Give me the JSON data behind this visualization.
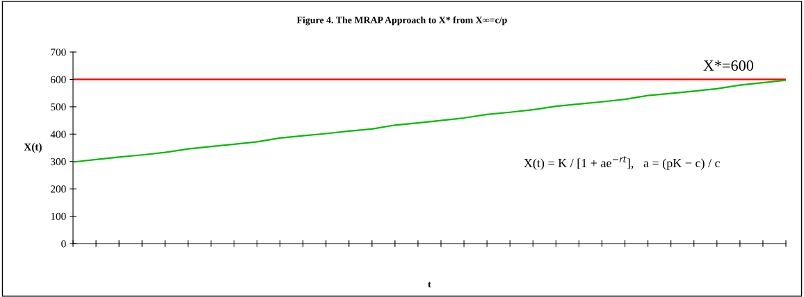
{
  "chart_data": {
    "type": "line",
    "title": "Figure 4. The MRAP Approach to X* from X∞=c/p",
    "xlabel": "t",
    "ylabel": "X(t)",
    "categories": [
      null,
      null,
      null,
      null,
      null,
      null,
      null,
      null,
      null,
      null,
      null,
      null,
      null,
      null,
      null,
      null,
      null,
      null,
      null,
      null,
      null,
      null,
      null,
      null,
      null,
      null,
      null,
      null,
      null,
      null,
      null,
      null
    ],
    "series": [
      {
        "color": "#00bb00",
        "values": [
          298,
          307,
          316,
          324,
          333,
          346,
          355,
          363,
          372,
          386,
          394,
          402,
          411,
          419,
          433,
          441,
          450,
          459,
          472,
          480,
          489,
          502,
          510,
          518,
          527,
          541,
          549,
          557,
          566,
          579,
          588,
          597
        ]
      }
    ],
    "ref_lines": [
      {
        "axis": "y",
        "value": 600,
        "label": "X*=600",
        "color": "#ff0000",
        "line_style": "solid"
      }
    ],
    "annotations": [
      "X(t) = K / [1 + ae$^{−rt}$],   a = (pK − c) / c"
    ],
    "ylim": [
      0,
      700
    ],
    "yticks": [
      0,
      100,
      200,
      300,
      400,
      500,
      600,
      700
    ],
    "tick_labels": "y",
    "grid": false,
    "legend": false,
    "marker": "none",
    "line_style": "solid"
  }
}
